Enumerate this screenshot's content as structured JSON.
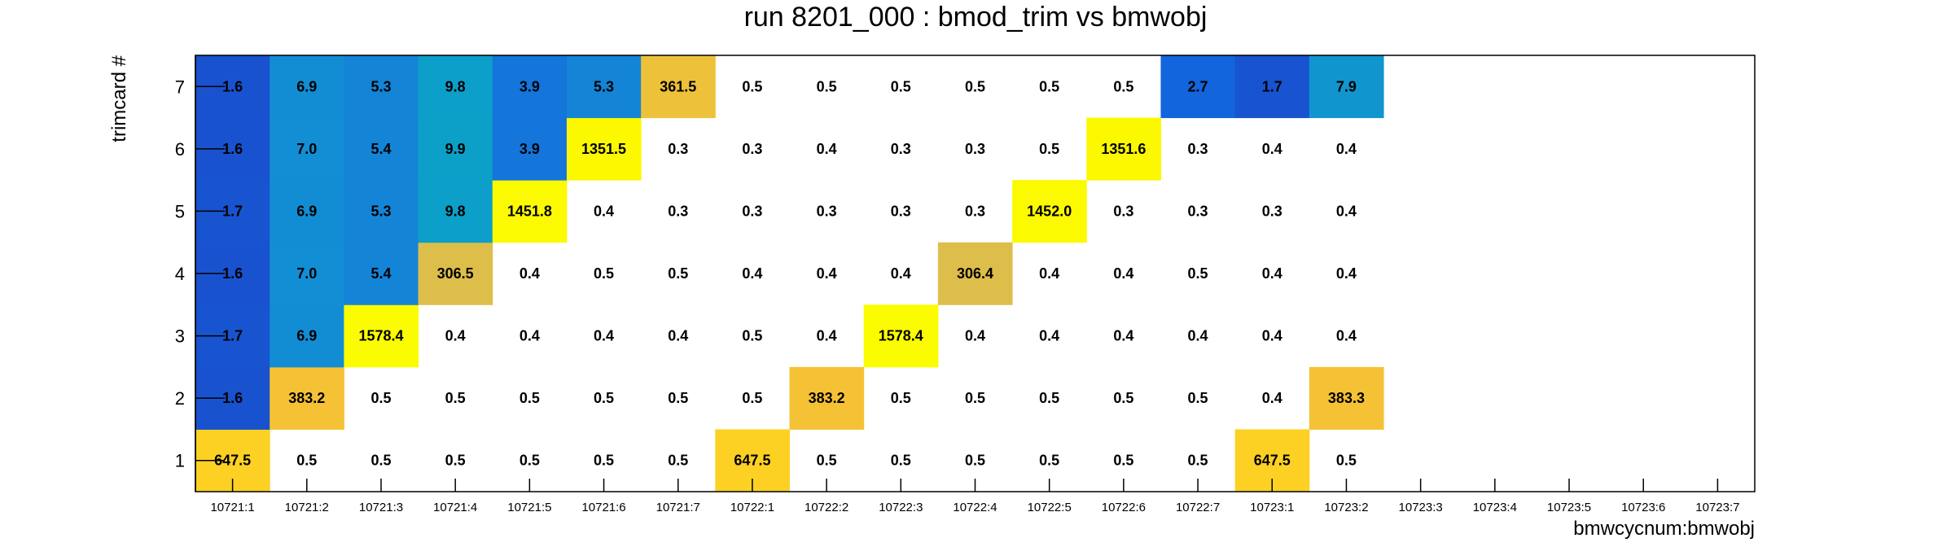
{
  "chart_data": {
    "type": "heatmap",
    "title": "run 8201_000 : bmod_trim vs bmwobj",
    "xlabel": "bmwcycnum:bmwobj",
    "ylabel": "trimcard #",
    "x_categories": [
      "10721:1",
      "10721:2",
      "10721:3",
      "10721:4",
      "10721:5",
      "10721:6",
      "10721:7",
      "10722:1",
      "10722:2",
      "10722:3",
      "10722:4",
      "10722:5",
      "10722:6",
      "10722:7",
      "10723:1",
      "10723:2",
      "10723:3",
      "10723:4",
      "10723:5",
      "10723:6",
      "10723:7"
    ],
    "y_categories": [
      "1",
      "2",
      "3",
      "4",
      "5",
      "6",
      "7"
    ],
    "values": [
      [
        "647.5",
        "0.5",
        "0.5",
        "0.5",
        "0.5",
        "0.5",
        "0.5",
        "647.5",
        "0.5",
        "0.5",
        "0.5",
        "0.5",
        "0.5",
        "0.5",
        "647.5",
        "0.5",
        null,
        null,
        null,
        null,
        null
      ],
      [
        "1.6",
        "383.2",
        "0.5",
        "0.5",
        "0.5",
        "0.5",
        "0.5",
        "0.5",
        "383.2",
        "0.5",
        "0.5",
        "0.5",
        "0.5",
        "0.5",
        "0.4",
        "383.3",
        null,
        null,
        null,
        null,
        null
      ],
      [
        "1.7",
        "6.9",
        "1578.4",
        "0.4",
        "0.4",
        "0.4",
        "0.4",
        "0.5",
        "0.4",
        "1578.4",
        "0.4",
        "0.4",
        "0.4",
        "0.4",
        "0.4",
        "0.4",
        null,
        null,
        null,
        null,
        null
      ],
      [
        "1.6",
        "7.0",
        "5.4",
        "306.5",
        "0.4",
        "0.5",
        "0.5",
        "0.4",
        "0.4",
        "0.4",
        "306.4",
        "0.4",
        "0.4",
        "0.5",
        "0.4",
        "0.4",
        null,
        null,
        null,
        null,
        null
      ],
      [
        "1.7",
        "6.9",
        "5.3",
        "9.8",
        "1451.8",
        "0.4",
        "0.3",
        "0.3",
        "0.3",
        "0.3",
        "0.3",
        "1452.0",
        "0.3",
        "0.3",
        "0.3",
        "0.4",
        null,
        null,
        null,
        null,
        null
      ],
      [
        "1.6",
        "7.0",
        "5.4",
        "9.9",
        "3.9",
        "1351.5",
        "0.3",
        "0.3",
        "0.4",
        "0.3",
        "0.3",
        "0.5",
        "1351.6",
        "0.3",
        "0.4",
        "0.4",
        null,
        null,
        null,
        null,
        null
      ],
      [
        "1.6",
        "6.9",
        "5.3",
        "9.8",
        "3.9",
        "5.3",
        "361.5",
        "0.5",
        "0.5",
        "0.5",
        "0.5",
        "0.5",
        "0.5",
        "2.7",
        "1.7",
        "7.9",
        null,
        null,
        null,
        null,
        null
      ]
    ],
    "color_scale": {
      "low_threshold": 1.0,
      "stops": [
        {
          "v": 1.5,
          "color": "#1a50cc"
        },
        {
          "v": 2.5,
          "color": "#1262dc"
        },
        {
          "v": 3.5,
          "color": "#1470dc"
        },
        {
          "v": 5.0,
          "color": "#1482d8"
        },
        {
          "v": 7.0,
          "color": "#128ed4"
        },
        {
          "v": 8.5,
          "color": "#0f99cc"
        },
        {
          "v": 10.0,
          "color": "#0ca0c8"
        },
        {
          "v": 300,
          "color": "#dcbe4c"
        },
        {
          "v": 380,
          "color": "#f4c234"
        },
        {
          "v": 650,
          "color": "#fcd124"
        },
        {
          "v": 1350,
          "color": "#fcf800"
        },
        {
          "v": 1600,
          "color": "#fcfc00"
        }
      ]
    }
  }
}
